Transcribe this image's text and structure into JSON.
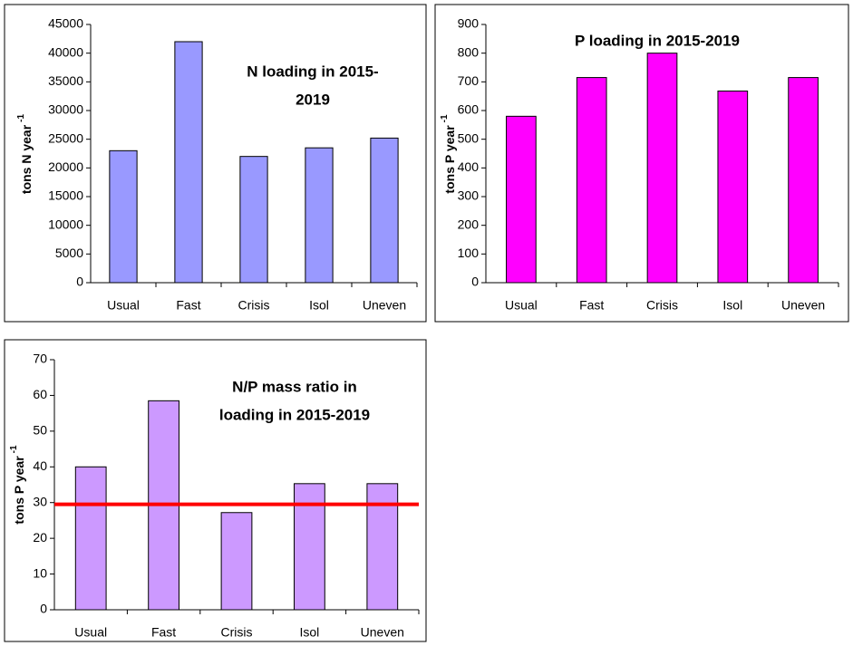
{
  "chart_data": [
    {
      "type": "bar",
      "title": [
        "N loading in 2015-",
        "2019"
      ],
      "y_label": "tons N year",
      "y_label_superscript": "-1",
      "categories": [
        "Usual",
        "Fast",
        "Crisis",
        "Isol",
        "Uneven"
      ],
      "values": [
        23000,
        42000,
        22000,
        23500,
        25200
      ],
      "color": "#9999ff",
      "ylim": [
        0,
        45000
      ],
      "yticks": [
        0,
        5000,
        10000,
        15000,
        20000,
        25000,
        30000,
        35000,
        40000,
        45000
      ]
    },
    {
      "type": "bar",
      "title": [
        "P loading in 2015-2019"
      ],
      "y_label": "tons P year",
      "y_label_superscript": "-1",
      "categories": [
        "Usual",
        "Fast",
        "Crisis",
        "Isol",
        "Uneven"
      ],
      "values": [
        580,
        715,
        800,
        668,
        715
      ],
      "color": "#ff00ff",
      "ylim": [
        0,
        900
      ],
      "yticks": [
        0,
        100,
        200,
        300,
        400,
        500,
        600,
        700,
        800,
        900
      ]
    },
    {
      "type": "bar",
      "title": [
        "N/P mass ratio in",
        "loading in 2015-2019"
      ],
      "y_label": "tons P year",
      "y_label_superscript": "-1",
      "categories": [
        "Usual",
        "Fast",
        "Crisis",
        "Isol",
        "Uneven"
      ],
      "values": [
        40,
        58.5,
        27.2,
        35.3,
        35.3
      ],
      "color": "#cc99ff",
      "ylim": [
        0,
        70
      ],
      "yticks": [
        0,
        10,
        20,
        30,
        40,
        50,
        60,
        70
      ],
      "reference_line": {
        "value": 29.5,
        "color": "#ff0000"
      }
    }
  ]
}
